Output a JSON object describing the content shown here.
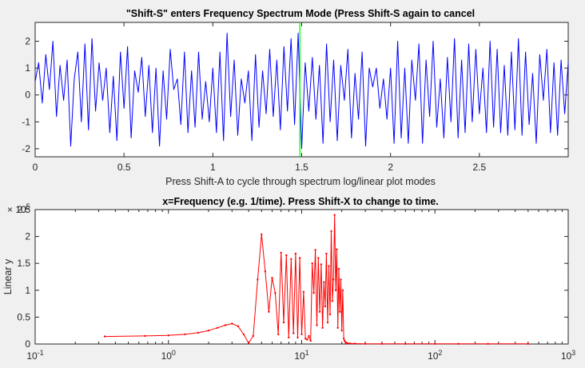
{
  "chart_data": [
    {
      "type": "line",
      "title": "\"Shift-S\" enters Frequency Spectrum Mode (Press Shift-S again to cancel",
      "xlabel": "Press Shift-A to cycle through spectrum log/linear plot modes",
      "ylabel": "",
      "xlim": [
        0,
        3
      ],
      "ylim": [
        -2.3,
        2.7
      ],
      "xticks": [
        0,
        0.5,
        1,
        1.5,
        2,
        2.5
      ],
      "xtick_labels": [
        "0",
        "0.5",
        "1",
        "1.5",
        "2",
        "2.5"
      ],
      "yticks": [
        2,
        1,
        0,
        -1,
        -2
      ],
      "ytick_labels": [
        "2",
        "1",
        "0",
        "-1",
        "-2"
      ],
      "cursor_x": 1.49,
      "colors": {
        "signal": "#0000ff",
        "cursor": "#00ff00"
      },
      "series": [
        {
          "x": [
            0,
            0.02,
            0.04,
            0.06,
            0.08,
            0.1,
            0.12,
            0.14,
            0.16,
            0.18,
            0.2,
            0.22,
            0.24,
            0.26,
            0.28,
            0.3,
            0.32,
            0.34,
            0.36,
            0.38,
            0.4,
            0.42,
            0.44,
            0.46,
            0.48,
            0.5,
            0.52,
            0.54,
            0.56,
            0.58,
            0.6,
            0.62,
            0.64,
            0.66,
            0.68,
            0.7,
            0.72,
            0.74,
            0.76,
            0.78,
            0.8,
            0.82,
            0.84,
            0.86,
            0.88,
            0.9,
            0.92,
            0.94,
            0.96,
            0.98,
            1.0,
            1.02,
            1.04,
            1.06,
            1.08,
            1.1,
            1.12,
            1.14,
            1.16,
            1.18,
            1.2,
            1.22,
            1.24,
            1.26,
            1.28,
            1.3,
            1.32,
            1.34,
            1.36,
            1.38,
            1.4,
            1.42,
            1.44,
            1.46,
            1.48,
            1.5,
            1.52,
            1.54,
            1.56,
            1.58,
            1.6,
            1.62,
            1.64,
            1.66,
            1.68,
            1.7,
            1.72,
            1.74,
            1.76,
            1.78,
            1.8,
            1.82,
            1.84,
            1.86,
            1.88,
            1.9,
            1.92,
            1.94,
            1.96,
            1.98,
            2.0,
            2.02,
            2.04,
            2.06,
            2.08,
            2.1,
            2.12,
            2.14,
            2.16,
            2.18,
            2.2,
            2.22,
            2.24,
            2.26,
            2.28,
            2.3,
            2.32,
            2.34,
            2.36,
            2.38,
            2.4,
            2.42,
            2.44,
            2.46,
            2.48,
            2.5,
            2.52,
            2.54,
            2.56,
            2.58,
            2.6,
            2.62,
            2.64,
            2.66,
            2.68,
            2.7,
            2.72,
            2.74,
            2.76,
            2.78,
            2.8,
            2.82,
            2.84,
            2.86,
            2.88,
            2.9,
            2.92,
            2.94,
            2.96,
            2.98,
            3.0
          ],
          "y": [
            0.5,
            1.2,
            -0.3,
            1.5,
            0.2,
            2.0,
            -0.8,
            1.1,
            -0.2,
            1.3,
            -1.9,
            0.6,
            1.6,
            -1.0,
            1.9,
            -1.3,
            2.1,
            -0.6,
            1.2,
            -0.2,
            1.0,
            -1.4,
            0.7,
            -1.7,
            1.6,
            -0.5,
            1.8,
            -1.6,
            0.9,
            0.1,
            1.4,
            -0.8,
            1.1,
            -1.4,
            1.0,
            -1.9,
            0.9,
            -0.9,
            1.7,
            0.2,
            0.6,
            -1.1,
            1.6,
            -1.4,
            0.9,
            -1.2,
            1.6,
            -0.9,
            0.5,
            -1.0,
            1.0,
            -1.4,
            1.6,
            -1.7,
            2.3,
            -0.8,
            1.3,
            -1.5,
            0.6,
            -0.3,
            0.9,
            -1.7,
            1.5,
            -1.2,
            0.9,
            -0.7,
            1.7,
            -0.8,
            1.3,
            -1.3,
            1.8,
            -0.6,
            2.1,
            -1.1,
            2.3,
            -2.0,
            1.2,
            -0.6,
            1.4,
            -0.9,
            1.1,
            -1.8,
            1.9,
            -1.0,
            1.3,
            -1.7,
            1.1,
            -0.2,
            1.7,
            -1.6,
            0.8,
            -0.9,
            1.6,
            -1.9,
            1.0,
            0.3,
            1.0,
            -0.5,
            0.6,
            -0.9,
            1.0,
            -1.8,
            2.0,
            -1.6,
            1.0,
            -1.8,
            1.3,
            -0.2,
            1.9,
            -1.8,
            1.3,
            -0.8,
            2.0,
            -1.2,
            0.6,
            -1.6,
            1.4,
            -1.0,
            2.1,
            -1.6,
            1.3,
            -1.4,
            1.9,
            -1.0,
            1.7,
            -0.7,
            1.0,
            -1.4,
            2.0,
            -1.2,
            1.7,
            -1.4,
            1.1,
            -1.5,
            1.6,
            -1.3,
            2.1,
            -1.5,
            1.6,
            -1.1,
            0.8,
            -1.8,
            1.5,
            -0.2,
            1.7,
            -1.4,
            1.2,
            -1.5,
            1.3,
            -0.7,
            1.2
          ]
        }
      ]
    },
    {
      "type": "line",
      "title": "x=Frequency (e.g. 1/time). Press Shift-X to change to time.",
      "xlabel": "",
      "ylabel": "Linear y",
      "xscale": "log",
      "xlim": [
        0.1,
        1000
      ],
      "ylim": [
        0,
        250000
      ],
      "xticks": [
        0.1,
        1,
        10,
        100,
        1000
      ],
      "xtick_base": "10",
      "xtick_exponents": [
        "-1",
        "0",
        "1",
        "2",
        "3"
      ],
      "yticks": [
        0,
        50000,
        100000,
        150000,
        200000,
        250000
      ],
      "ytick_labels": [
        "0",
        "0.5",
        "1",
        "1.5",
        "2",
        "2.5"
      ],
      "y_multiplier_base": "× 10",
      "y_multiplier_exp": "5",
      "colors": {
        "spectrum": "#ff0000"
      },
      "series": [
        {
          "x": [
            0.333,
            0.667,
            1.0,
            1.33,
            1.67,
            2.0,
            2.33,
            2.67,
            3.0,
            3.33,
            3.67,
            4.0,
            4.33,
            4.67,
            5.0,
            5.33,
            5.67,
            6.0,
            6.33,
            6.67,
            7.0,
            7.33,
            7.67,
            8.0,
            8.33,
            8.67,
            9.0,
            9.33,
            9.67,
            10.0,
            10.33,
            10.67,
            11.0,
            11.33,
            11.67,
            12.0,
            12.33,
            12.67,
            13.0,
            13.33,
            13.67,
            14.0,
            14.33,
            14.67,
            15.0,
            15.33,
            15.67,
            16.0,
            16.33,
            16.67,
            17.0,
            17.33,
            17.67,
            18.0,
            18.33,
            18.67,
            19.0,
            19.33,
            19.67,
            20.0,
            20.33,
            20.67,
            21.0,
            21.33,
            21.67,
            22.0,
            23.0,
            25.0,
            30.0,
            40.0,
            60.0,
            100.0,
            150.0,
            250.0,
            500.0
          ],
          "y": [
            14000,
            15000,
            16000,
            18000,
            21000,
            25000,
            30000,
            35000,
            38000,
            33000,
            18000,
            2000,
            15000,
            120000,
            204000,
            135000,
            60000,
            123000,
            95000,
            18000,
            170000,
            40000,
            165000,
            12000,
            158000,
            20000,
            168000,
            12000,
            160000,
            18000,
            97000,
            10000,
            8000,
            15000,
            6000,
            150000,
            95000,
            175000,
            35000,
            160000,
            60000,
            148000,
            30000,
            115000,
            70000,
            168000,
            40000,
            145000,
            55000,
            210000,
            80000,
            120000,
            240000,
            100000,
            176000,
            30000,
            140000,
            60000,
            120000,
            25000,
            100000,
            10000,
            6000,
            3000,
            2000,
            1500,
            1000,
            700,
            500,
            400,
            300,
            300,
            300,
            300,
            300
          ]
        }
      ]
    }
  ]
}
